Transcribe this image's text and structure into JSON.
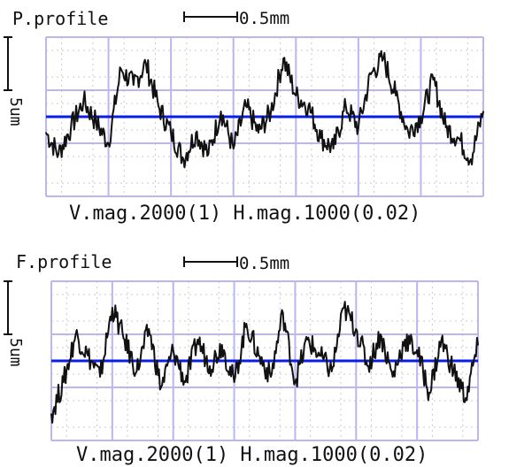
{
  "chart_data": [
    {
      "type": "line",
      "title": "P.profile",
      "scale_label": "0.5mm",
      "ylabel": "5um",
      "footer": "V.mag.2000(1) H.mag.1000(0.02)",
      "mean_line": 0,
      "ylim": [
        -7.5,
        7.5
      ],
      "xlim": [
        0,
        3.5
      ],
      "grid": "on",
      "colors": {
        "trace": "#111111",
        "mean": "#0a1ee6",
        "grid": "#b9b6f0"
      },
      "series": [
        {
          "x": [
            0,
            0.1,
            0.2,
            0.3,
            0.4,
            0.5,
            0.6,
            0.7,
            0.8,
            0.9,
            1.0,
            1.1,
            1.2,
            1.3,
            1.4,
            1.5,
            1.6,
            1.7,
            1.8,
            1.9,
            2.0,
            2.1,
            2.2,
            2.3,
            2.4,
            2.5,
            2.6,
            2.7,
            2.8,
            2.9,
            3.0,
            3.1,
            3.2,
            3.3,
            3.4,
            3.5
          ],
          "values": [
            -1.5,
            -3.5,
            -1.0,
            1.5,
            -0.5,
            -2.5,
            4.5,
            3.0,
            5.0,
            1.0,
            -1.5,
            -4.0,
            -1.5,
            -3.5,
            0.5,
            -3.0,
            1.0,
            -1.5,
            0.5,
            5.5,
            2.0,
            1.0,
            -2.0,
            -3.0,
            1.0,
            -1.0,
            4.0,
            5.5,
            2.0,
            -1.5,
            0.0,
            3.5,
            -1.0,
            -2.0,
            -4.0,
            0.5
          ]
        }
      ]
    },
    {
      "type": "line",
      "title": "F.profile",
      "scale_label": "0.5mm",
      "ylabel": "5um",
      "footer": "V.mag.2000(1) H.mag.1000(0.02)",
      "mean_line": 0,
      "ylim": [
        -7.5,
        7.5
      ],
      "xlim": [
        0,
        3.5
      ],
      "grid": "on",
      "colors": {
        "trace": "#111111",
        "mean": "#0a1ee6",
        "grid": "#b9b6f0"
      },
      "series": [
        {
          "x": [
            0,
            0.1,
            0.2,
            0.3,
            0.4,
            0.5,
            0.6,
            0.7,
            0.8,
            0.9,
            1.0,
            1.1,
            1.2,
            1.3,
            1.4,
            1.5,
            1.6,
            1.7,
            1.8,
            1.9,
            2.0,
            2.1,
            2.2,
            2.3,
            2.4,
            2.5,
            2.6,
            2.7,
            2.8,
            2.9,
            3.0,
            3.1,
            3.2,
            3.3,
            3.4,
            3.5
          ],
          "values": [
            -5.0,
            -2.0,
            2.5,
            0.5,
            -1.5,
            5.0,
            2.0,
            -1.0,
            3.0,
            -2.5,
            1.0,
            -2.0,
            2.0,
            -0.5,
            1.5,
            -2.0,
            3.5,
            0.5,
            -1.5,
            4.5,
            -2.0,
            2.0,
            0.5,
            -1.0,
            5.0,
            3.0,
            -0.5,
            2.5,
            -1.5,
            2.0,
            1.0,
            -3.0,
            2.0,
            -1.0,
            -3.5,
            1.5
          ]
        }
      ]
    }
  ]
}
